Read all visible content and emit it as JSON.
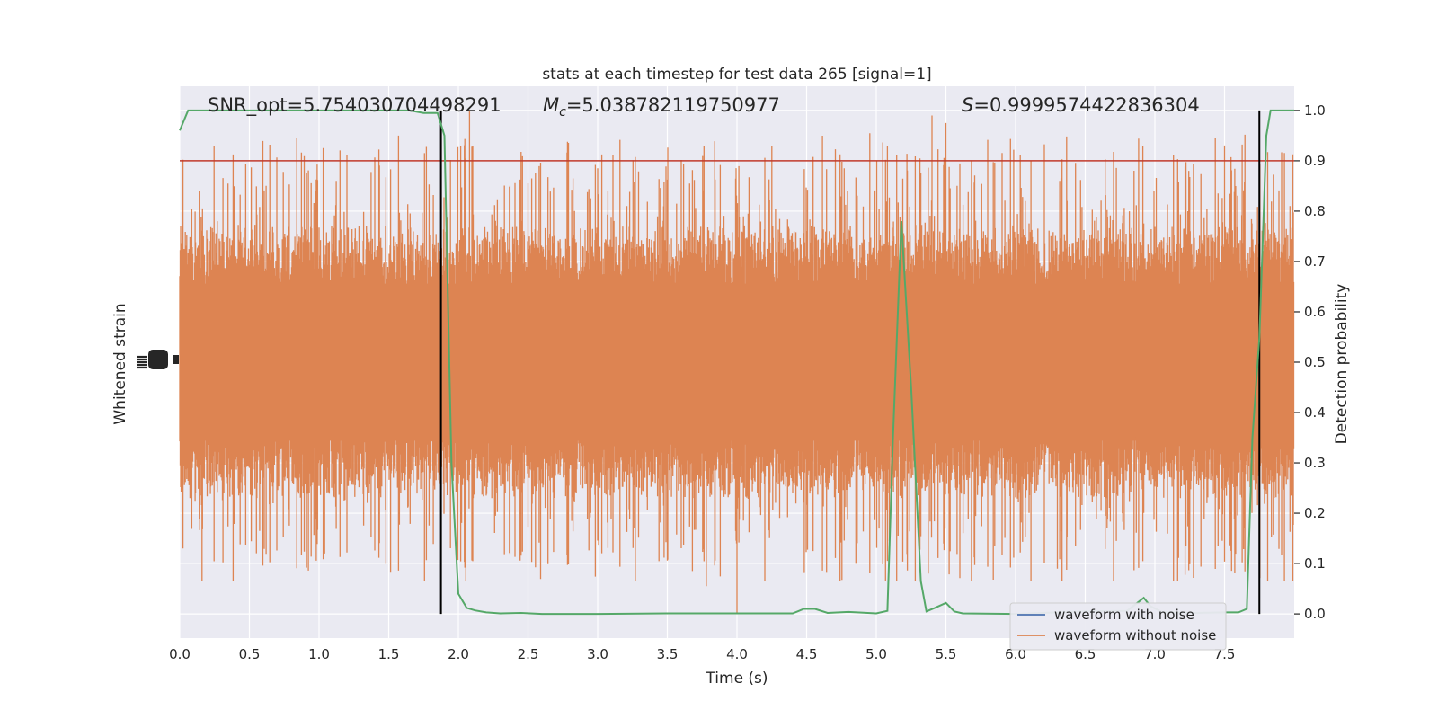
{
  "chart_data": {
    "type": "line",
    "title": "stats at each timestep for test data 265 [signal=1]",
    "xlabel": "Time (s)",
    "ylabel_left": "Whitened strain",
    "ylabel_right": "Detection probability",
    "xlim": [
      0.0,
      8.0
    ],
    "ylim_right": [
      -0.048,
      1.048
    ],
    "xticks": [
      "0.0",
      "0.5",
      "1.0",
      "1.5",
      "2.0",
      "2.5",
      "3.0",
      "3.5",
      "4.0",
      "4.5",
      "5.0",
      "5.5",
      "6.0",
      "6.5",
      "7.0",
      "7.5"
    ],
    "yticks_right": [
      "0.0",
      "0.1",
      "0.2",
      "0.3",
      "0.4",
      "0.5",
      "0.6",
      "0.7",
      "0.8",
      "0.9",
      "1.0"
    ],
    "grid": true,
    "legend_placement": "lower-right",
    "annotations": {
      "snr": "SNR_opt=5.754030704498291",
      "mc_symbol": "M",
      "mc_subscript": "c",
      "mc_value": "=5.038782119750977",
      "s_symbol": "S",
      "s_value": "=0.9999574422836304"
    },
    "threshold": {
      "y": 0.9,
      "color": "#c0392b"
    },
    "vlines": [
      1.875,
      7.75
    ],
    "series": [
      {
        "name": "waveform with noise",
        "color": "#4c72b0",
        "kind": "strain"
      },
      {
        "name": "waveform without noise",
        "color": "#dd8452",
        "kind": "strain",
        "band_center": 0.5,
        "band_core_halfwidth": 0.2,
        "spike_range": [
          0.065,
          1.0
        ]
      },
      {
        "name": "",
        "color": "#55a868",
        "kind": "probability",
        "x": [
          0.0,
          0.06,
          0.25,
          0.5,
          0.75,
          1.0,
          1.25,
          1.5,
          1.65,
          1.75,
          1.85,
          1.9,
          1.95,
          2.0,
          2.06,
          2.12,
          2.2,
          2.3,
          2.45,
          2.6,
          3.0,
          3.5,
          4.0,
          4.4,
          4.48,
          4.56,
          4.65,
          4.8,
          5.0,
          5.08,
          5.12,
          5.18,
          5.25,
          5.32,
          5.36,
          5.42,
          5.5,
          5.56,
          5.62,
          6.0,
          6.5,
          6.8,
          6.92,
          6.97,
          7.05,
          7.3,
          7.5,
          7.6,
          7.66,
          7.7,
          7.75,
          7.8,
          7.83,
          8.0
        ],
        "y": [
          0.96,
          1.0,
          1.0,
          1.0,
          1.0,
          1.0,
          1.0,
          1.0,
          1.0,
          0.995,
          0.995,
          0.95,
          0.3,
          0.04,
          0.012,
          0.007,
          0.003,
          0.001,
          0.002,
          0.0,
          0.0,
          0.001,
          0.001,
          0.001,
          0.01,
          0.01,
          0.002,
          0.004,
          0.001,
          0.006,
          0.35,
          0.78,
          0.45,
          0.065,
          0.005,
          0.012,
          0.022,
          0.005,
          0.001,
          0.0,
          0.005,
          0.006,
          0.032,
          0.015,
          0.004,
          0.002,
          0.003,
          0.003,
          0.01,
          0.35,
          0.55,
          0.95,
          1.0,
          1.0
        ]
      }
    ]
  }
}
